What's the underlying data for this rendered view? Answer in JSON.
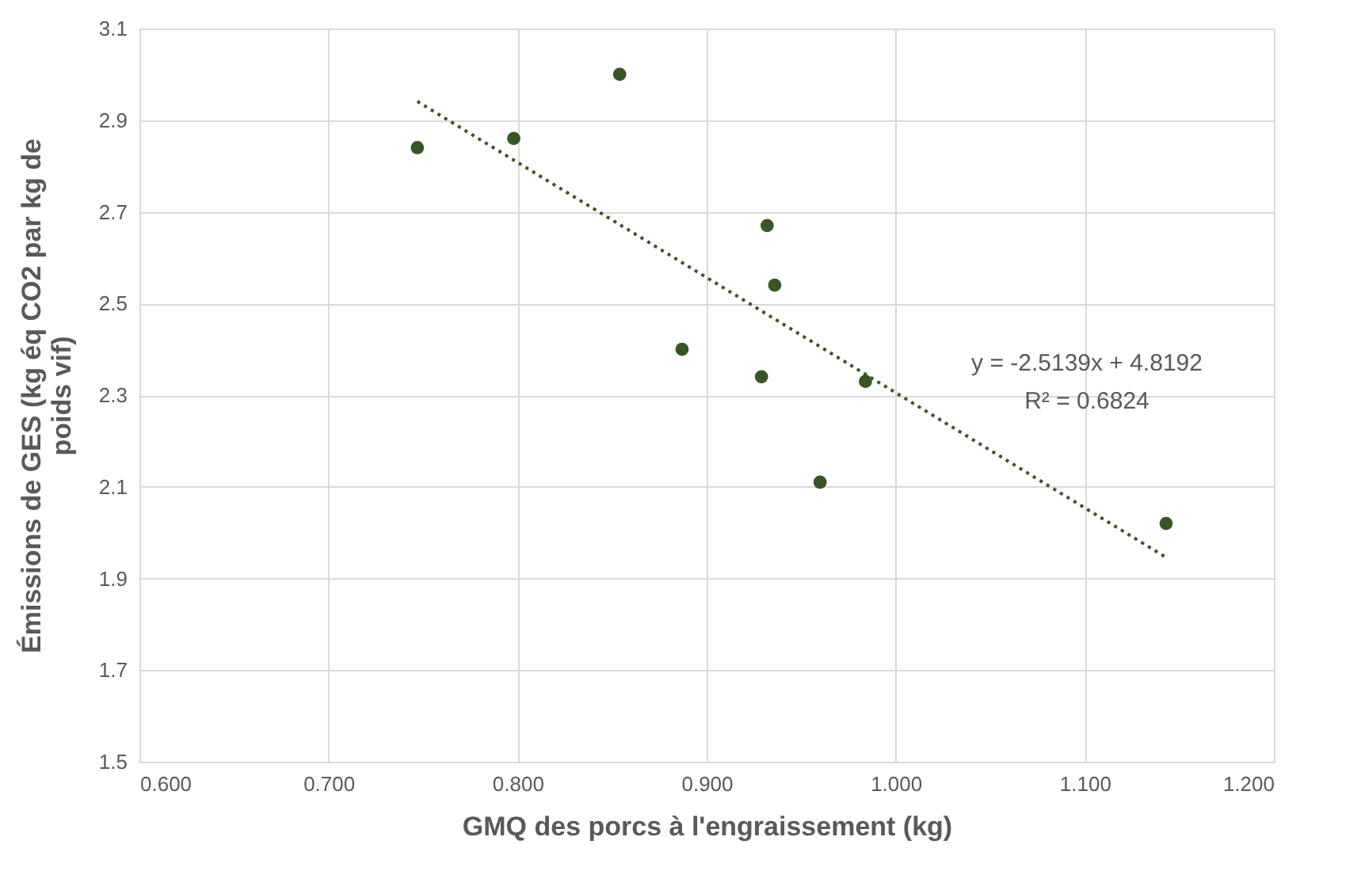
{
  "chart_data": {
    "type": "scatter",
    "xlabel": "GMQ des porcs à l'engraissement (kg)",
    "ylabel": "Émissions de GES (kg éq CO2 par kg de poids vif)",
    "xlim": [
      0.6,
      1.2
    ],
    "ylim": [
      1.5,
      3.1
    ],
    "xticks": [
      {
        "value": 0.6,
        "label": "0.600"
      },
      {
        "value": 0.7,
        "label": "0.700"
      },
      {
        "value": 0.8,
        "label": "0.800"
      },
      {
        "value": 0.9,
        "label": "0.900"
      },
      {
        "value": 1.0,
        "label": "1.000"
      },
      {
        "value": 1.1,
        "label": "1.100"
      },
      {
        "value": 1.2,
        "label": "1.200"
      }
    ],
    "yticks": [
      1.5,
      1.7,
      1.9,
      2.1,
      2.3,
      2.5,
      2.7,
      2.9,
      3.1
    ],
    "grid": true,
    "series": [
      {
        "marker": "circle",
        "color": "#375623",
        "x": [
          0.747,
          0.798,
          0.854,
          0.932,
          0.936,
          0.887,
          0.929,
          0.984,
          0.96,
          1.143
        ],
        "values": [
          2.84,
          2.86,
          3.0,
          2.67,
          2.54,
          2.4,
          2.34,
          2.33,
          2.11,
          2.02
        ]
      },
      {
        "type": "line",
        "marker": "none",
        "color": "#375623",
        "line_style": "dotted",
        "x": [
          0.747,
          1.143
        ],
        "values": [
          2.941,
          1.946
        ]
      }
    ],
    "annotations": [
      "y = -2.5139x + 4.8192",
      "R² = 0.6824"
    ]
  }
}
